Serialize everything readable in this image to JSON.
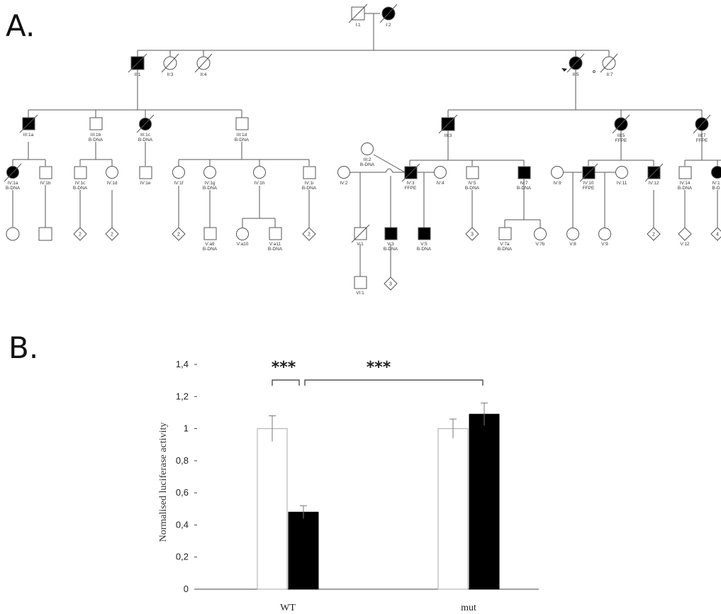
{
  "panel_a": {
    "letter": "A.",
    "individuals": {
      "I1": "I:1",
      "I2": "I:2",
      "II1": "II:1",
      "II3": "II:3",
      "II4": "II:4",
      "II5": "II:5",
      "II7": "II:7",
      "III1a": "III:1a",
      "III1b": "III:1b",
      "III1c": "III:1c",
      "III1d": "III:1d",
      "III2": "III:2",
      "III3": "III:3",
      "III5": "III:5",
      "III7": "III:7",
      "IV1a": "IV:1a",
      "IV1b": "IV:1b",
      "IV1c": "IV:1c",
      "IV1d": "IV:1d",
      "IV1e": "IV:1e",
      "IV1f": "IV:1f",
      "IV1g": "IV:1g",
      "IV1h": "IV:1h",
      "IV1i": "IV:1i",
      "IV2": "IV:2",
      "IV3": "IV:3",
      "IV4": "IV:4",
      "IV5": "IV:5",
      "IV7": "IV:7",
      "IV9": "IV:9",
      "IV10": "IV:10",
      "IV11": "IV:11",
      "IV12": "IV:12",
      "IV14": "IV:14",
      "IV1x": "IV:1",
      "Va9": "V:a9",
      "Va10": "V:a10",
      "Va11": "V:a11",
      "V1": "V:1",
      "V3": "V:3",
      "V5": "V:5",
      "V7a": "V:7a",
      "V7b": "V:7b",
      "V8": "V:8",
      "V9": "V:9",
      "V12": "V:12",
      "VI1": "VI:1"
    },
    "sample_labels": {
      "bdna": "B-DNA",
      "ffpe": "FFPE",
      "bdna_cut": "B-D"
    },
    "diamond_counts": {
      "d1": "2",
      "d2": "2",
      "d3": "2",
      "d4": "2",
      "d5": "3",
      "d6": "3",
      "d7": "2",
      "d8": "4"
    }
  },
  "panel_b": {
    "letter": "B.",
    "significance": [
      "***",
      "***"
    ]
  },
  "chart_data": {
    "type": "bar",
    "categories": [
      "WT",
      "mut"
    ],
    "series": [
      {
        "values": [
          1.0,
          1.0
        ],
        "errors": [
          0.08,
          0.06
        ],
        "color": "#ffffff"
      },
      {
        "values": [
          0.48,
          1.09
        ],
        "errors": [
          0.04,
          0.07
        ],
        "color": "#000000"
      }
    ],
    "ylabel": "Normalised luciferase activity",
    "ylim": [
      0,
      1.4
    ],
    "yticks": [
      "0",
      "0,2",
      "0,4",
      "0,6",
      "0,8",
      "1",
      "1,2",
      "1,4"
    ],
    "grid": false
  }
}
